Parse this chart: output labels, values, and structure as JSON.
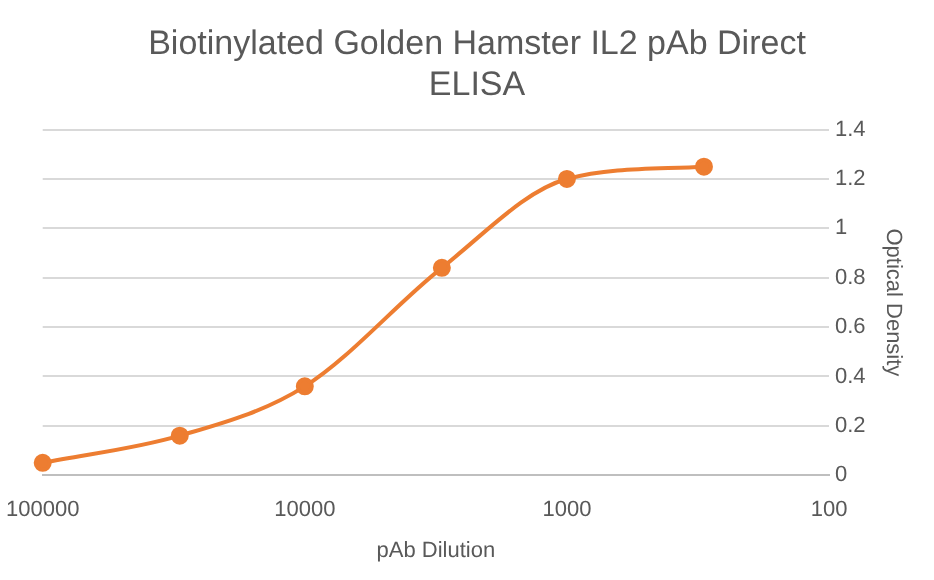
{
  "chart_data": {
    "type": "line",
    "title": "Biotinylated Golden Hamster IL2 pAb Direct ELISA",
    "xlabel": "pAb Dilution",
    "ylabel": "Optical Density",
    "x": [
      100000,
      30000,
      10000,
      3000,
      1000,
      300
    ],
    "series": [
      {
        "color": "#ed7d31",
        "values": [
          0.05,
          0.16,
          0.36,
          0.84,
          1.2,
          1.25
        ]
      }
    ],
    "log": "x",
    "xlim": [
      100000,
      100
    ],
    "xticks": [
      100000,
      10000,
      1000,
      100
    ],
    "ylim": [
      0,
      1.4
    ],
    "yticks": [
      0,
      0.2,
      0.4,
      0.6,
      0.8,
      1,
      1.2,
      1.4
    ],
    "grid": "y",
    "legend": false,
    "marker": "circle",
    "line_style": "solid"
  }
}
